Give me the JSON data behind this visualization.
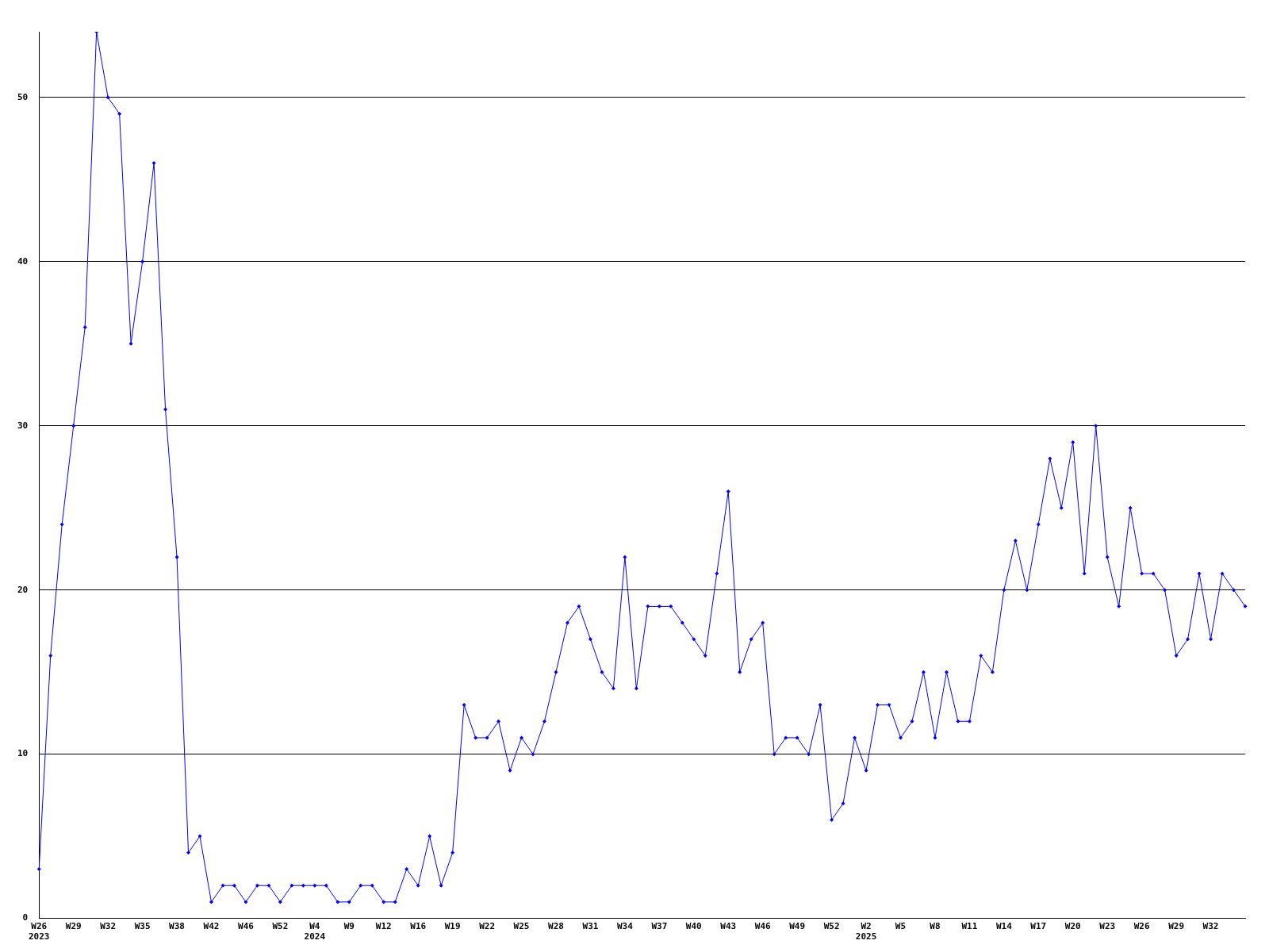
{
  "chart_data": {
    "type": "line",
    "categories": [
      "W26\n2023",
      null,
      null,
      "W29",
      null,
      null,
      "W32",
      null,
      null,
      "W35",
      null,
      null,
      "W38",
      null,
      null,
      "W42",
      null,
      null,
      "W46",
      null,
      null,
      "W52",
      null,
      null,
      "W4\n2024",
      null,
      null,
      "W9",
      null,
      null,
      "W12",
      null,
      null,
      "W16",
      null,
      null,
      "W19",
      null,
      null,
      "W22",
      null,
      null,
      "W25",
      null,
      null,
      "W28",
      null,
      null,
      "W31",
      null,
      null,
      "W34",
      null,
      null,
      "W37",
      null,
      null,
      "W40",
      null,
      null,
      "W43",
      null,
      null,
      "W46",
      null,
      null,
      "W49",
      null,
      null,
      "W52",
      null,
      null,
      "W2\n2025",
      null,
      null,
      "W5",
      null,
      null,
      "W8",
      null,
      null,
      "W11",
      null,
      null,
      "W14",
      null,
      null,
      "W17",
      null,
      null,
      "W20",
      null,
      null,
      "W23",
      null,
      null,
      "W26",
      null,
      null,
      "W29",
      null,
      null,
      "W32",
      null,
      null,
      null
    ],
    "series": [
      {
        "color": "#0000ff",
        "values": [
          3,
          16,
          24,
          30,
          36,
          54,
          50,
          49,
          35,
          40,
          46,
          31,
          22,
          4,
          5,
          1,
          2,
          2,
          1,
          2,
          2,
          1,
          2,
          2,
          2,
          2,
          1,
          1,
          2,
          2,
          1,
          1,
          3,
          2,
          5,
          2,
          4,
          13,
          11,
          11,
          12,
          9,
          11,
          10,
          12,
          15,
          18,
          19,
          17,
          15,
          14,
          22,
          14,
          19,
          19,
          19,
          18,
          17,
          16,
          21,
          26,
          15,
          17,
          18,
          10,
          11,
          11,
          10,
          13,
          6,
          7,
          11,
          9,
          13,
          13,
          11,
          12,
          15,
          11,
          15,
          12,
          12,
          16,
          15,
          20,
          23,
          20,
          24,
          28,
          25,
          29,
          21,
          30,
          22,
          19,
          25,
          21,
          21,
          20,
          16,
          17,
          21,
          17,
          21,
          20,
          19
        ]
      }
    ],
    "ylim": [
      0,
      54
    ],
    "yticks": [
      0,
      10,
      20,
      30,
      40,
      50
    ],
    "grid": "y",
    "legend": false,
    "marker": "diamond",
    "line_style": "solid"
  }
}
